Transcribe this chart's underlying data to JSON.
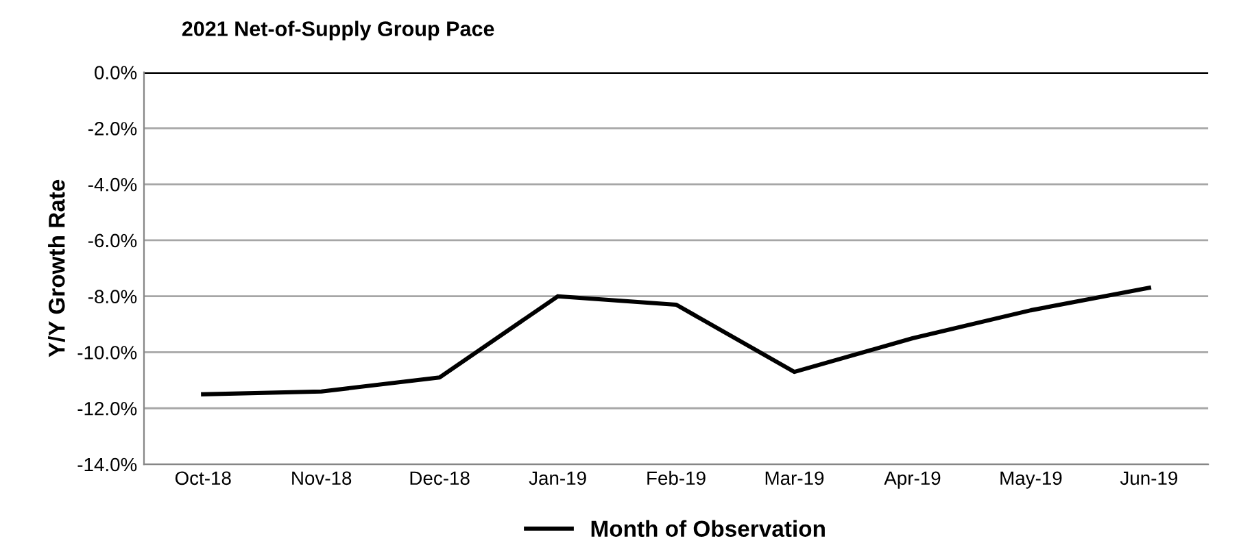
{
  "chart_data": {
    "type": "line",
    "title": "2021 Net-of-Supply Group Pace",
    "ylabel": "Y/Y Growth Rate",
    "categories": [
      "Oct-18",
      "Nov-18",
      "Dec-18",
      "Jan-19",
      "Feb-19",
      "Mar-19",
      "Apr-19",
      "May-19",
      "Jun-19"
    ],
    "series": [
      {
        "name": "Month of Observation",
        "color": "#000000",
        "values": [
          -11.5,
          -11.4,
          -10.9,
          -8.0,
          -8.3,
          -10.7,
          -9.5,
          -8.5,
          -7.7
        ]
      }
    ],
    "ylim": [
      -14,
      0
    ],
    "yticks": [
      {
        "value": -14,
        "label": "-14.0%"
      },
      {
        "value": -12,
        "label": "-12.0%"
      },
      {
        "value": -10,
        "label": "-10.0%"
      },
      {
        "value": -8,
        "label": "-8.0%"
      },
      {
        "value": -6,
        "label": "-6.0%"
      },
      {
        "value": -4,
        "label": "-4.0%"
      },
      {
        "value": -2,
        "label": "-2.0%"
      },
      {
        "value": 0,
        "label": "0.0%"
      }
    ],
    "ref_lines": [
      {
        "axis": "y",
        "value": 0,
        "label": null,
        "color": "#000000"
      }
    ],
    "grid": "y",
    "legend": "bottom",
    "marker": "none",
    "line_style": "solid"
  }
}
